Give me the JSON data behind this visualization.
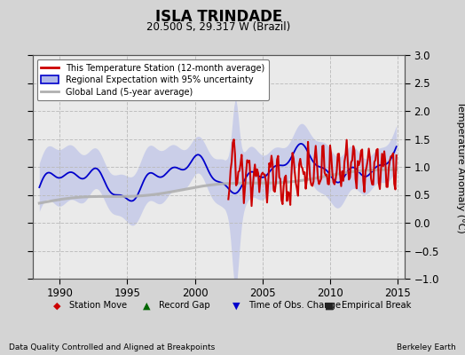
{
  "title": "ISLA TRINDADE",
  "subtitle": "20.500 S, 29.317 W (Brazil)",
  "ylabel": "Temperature Anomaly (°C)",
  "xlim": [
    1988.0,
    2015.5
  ],
  "ylim": [
    -1.0,
    3.0
  ],
  "yticks": [
    -1,
    -0.5,
    0,
    0.5,
    1,
    1.5,
    2,
    2.5,
    3
  ],
  "xticks": [
    1990,
    1995,
    2000,
    2005,
    2010,
    2015
  ],
  "bg_color": "#d4d4d4",
  "plot_bg_color": "#eaeaea",
  "red_line_color": "#cc0000",
  "blue_line_color": "#0000cc",
  "fill_color": "#b0b8e8",
  "gray_line_color": "#b0b0b0",
  "footer_left": "Data Quality Controlled and Aligned at Breakpoints",
  "footer_right": "Berkeley Earth"
}
